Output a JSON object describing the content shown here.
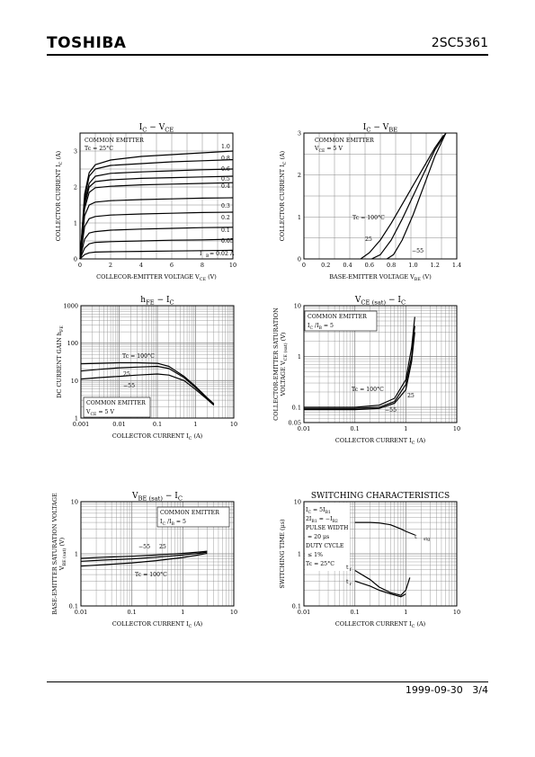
{
  "header": {
    "brand": "TOSHIBA",
    "part_number": "2SC5361"
  },
  "footer": {
    "date": "1999-09-30",
    "page": "3/4"
  },
  "chart_data": [
    {
      "id": "ic-vce",
      "type": "line",
      "title": [
        "I",
        "C",
        " − V",
        "CE"
      ],
      "xlabel": [
        "COLLECOR-EMITTER VOLTAGE   V",
        "CE",
        "   (V)"
      ],
      "ylabel": [
        "COLLECTOR CURRENT   I",
        "C",
        "   (A)"
      ],
      "xlim": [
        0,
        10
      ],
      "ylim": [
        0,
        3.5
      ],
      "xticks": [
        "0",
        "2",
        "4",
        "6",
        "8",
        "10"
      ],
      "yticks": [
        "0",
        "1",
        "2",
        "3"
      ],
      "grid": true,
      "annotations": [
        [
          "COMMON EMITTER"
        ],
        [
          "Tc = 25°C"
        ]
      ],
      "curve_labels": [
        "1.0",
        "0.8",
        "0.6",
        "0.5",
        "0.4",
        "0.3",
        "0.2",
        "0.1",
        "0.05",
        "I",
        "B",
        " = 0.02 A"
      ],
      "series": [
        {
          "ib": 1.0,
          "x": [
            0,
            0.3,
            0.6,
            1,
            2,
            4,
            6,
            8,
            10
          ],
          "y": [
            0,
            1.8,
            2.4,
            2.62,
            2.75,
            2.85,
            2.9,
            2.95,
            3.0
          ]
        },
        {
          "ib": 0.8,
          "x": [
            0,
            0.3,
            0.6,
            1,
            2,
            4,
            6,
            8,
            10
          ],
          "y": [
            0,
            1.7,
            2.3,
            2.5,
            2.6,
            2.65,
            2.7,
            2.73,
            2.76
          ]
        },
        {
          "ib": 0.6,
          "x": [
            0,
            0.3,
            0.6,
            1,
            2,
            4,
            6,
            8,
            10
          ],
          "y": [
            0,
            1.6,
            2.1,
            2.3,
            2.38,
            2.42,
            2.45,
            2.48,
            2.5
          ]
        },
        {
          "ib": 0.5,
          "x": [
            0,
            0.3,
            0.6,
            1,
            2,
            4,
            6,
            8,
            10
          ],
          "y": [
            0,
            1.5,
            2.0,
            2.15,
            2.2,
            2.24,
            2.26,
            2.28,
            2.3
          ]
        },
        {
          "ib": 0.4,
          "x": [
            0,
            0.3,
            0.6,
            1,
            2,
            4,
            6,
            8,
            10
          ],
          "y": [
            0,
            1.4,
            1.85,
            1.98,
            2.02,
            2.06,
            2.08,
            2.1,
            2.12
          ]
        },
        {
          "ib": 0.3,
          "x": [
            0,
            0.3,
            0.6,
            1,
            2,
            4,
            6,
            8,
            10
          ],
          "y": [
            0,
            1.2,
            1.5,
            1.58,
            1.62,
            1.65,
            1.67,
            1.69,
            1.7
          ]
        },
        {
          "ib": 0.2,
          "x": [
            0,
            0.3,
            0.6,
            1,
            2,
            4,
            6,
            8,
            10
          ],
          "y": [
            0,
            0.9,
            1.12,
            1.18,
            1.22,
            1.25,
            1.27,
            1.29,
            1.3
          ]
        },
        {
          "ib": 0.1,
          "x": [
            0,
            0.3,
            0.6,
            1,
            2,
            4,
            6,
            8,
            10
          ],
          "y": [
            0,
            0.55,
            0.72,
            0.76,
            0.8,
            0.83,
            0.85,
            0.87,
            0.88
          ]
        },
        {
          "ib": 0.05,
          "x": [
            0,
            0.3,
            0.6,
            1,
            2,
            4,
            6,
            8,
            10
          ],
          "y": [
            0,
            0.3,
            0.42,
            0.46,
            0.48,
            0.5,
            0.52,
            0.53,
            0.55
          ]
        },
        {
          "ib": 0.02,
          "x": [
            0,
            0.3,
            0.6,
            1,
            2,
            4,
            6,
            8,
            10
          ],
          "y": [
            0,
            0.12,
            0.17,
            0.19,
            0.2,
            0.21,
            0.22,
            0.23,
            0.24
          ]
        }
      ]
    },
    {
      "id": "ic-vbe",
      "type": "line",
      "title": [
        "I",
        "C",
        " − V",
        "BE"
      ],
      "xlabel": [
        "BASE-EMITTER VOLTAGE   V",
        "BE",
        "   (V)"
      ],
      "ylabel": [
        "COLLECTOR CURRENT   I",
        "C",
        "   (A)"
      ],
      "xlim": [
        0,
        1.4
      ],
      "ylim": [
        0,
        3
      ],
      "xticks": [
        "0",
        "0.2",
        "0.4",
        "0.6",
        "0.8",
        "1.0",
        "1.2",
        "1.4"
      ],
      "yticks": [
        "0",
        "1",
        "2",
        "3"
      ],
      "grid": true,
      "annotations": [
        [
          "COMMON EMITTER"
        ],
        [
          "V",
          "CE",
          " = 5 V"
        ]
      ],
      "curve_labels": [
        "Tc = 100°C",
        "25",
        "−55"
      ],
      "series": [
        {
          "name": "Tc = 100°C",
          "x": [
            0.52,
            0.6,
            0.7,
            0.8,
            0.9,
            1.0,
            1.1,
            1.2,
            1.28
          ],
          "y": [
            0,
            0.15,
            0.45,
            0.85,
            1.3,
            1.75,
            2.2,
            2.65,
            2.95
          ]
        },
        {
          "name": "25",
          "x": [
            0.62,
            0.7,
            0.8,
            0.9,
            1.0,
            1.1,
            1.2,
            1.3
          ],
          "y": [
            0,
            0.1,
            0.45,
            0.95,
            1.5,
            2.05,
            2.6,
            3.0
          ]
        },
        {
          "name": "−55",
          "x": [
            0.76,
            0.82,
            0.9,
            1.0,
            1.1,
            1.2,
            1.3
          ],
          "y": [
            0,
            0.1,
            0.45,
            1.05,
            1.75,
            2.45,
            3.0
          ]
        }
      ]
    },
    {
      "id": "hfe-ic",
      "type": "line",
      "title": [
        "h",
        "FE",
        " − I",
        "C"
      ],
      "xlabel": [
        "COLLECTOR CURRENT   I",
        "C",
        "   (A)"
      ],
      "ylabel": [
        "DC CURRENT GAIN   h",
        "FE"
      ],
      "xscale": "log",
      "yscale": "log",
      "xlim": [
        0.001,
        10
      ],
      "ylim": [
        1,
        1000
      ],
      "xticks": [
        "0.001",
        "0.01",
        "0.1",
        "1",
        "10"
      ],
      "yticks": [
        "1",
        "10",
        "100",
        "1000"
      ],
      "grid": true,
      "annotations": [
        [
          "COMMON EMITTER"
        ],
        [
          "V",
          "CE",
          " = 5 V"
        ]
      ],
      "curve_labels": [
        "Tc = 100°C",
        "25",
        "−55"
      ],
      "series": [
        {
          "name": "Tc = 100°C",
          "x": [
            0.001,
            0.003,
            0.01,
            0.03,
            0.1,
            0.2,
            0.5,
            1,
            2,
            3
          ],
          "y": [
            28,
            29,
            30,
            30,
            29,
            24,
            13,
            7,
            3.5,
            2.4
          ]
        },
        {
          "name": "25",
          "x": [
            0.001,
            0.003,
            0.01,
            0.03,
            0.1,
            0.2,
            0.5,
            1,
            2,
            3
          ],
          "y": [
            18,
            20,
            22,
            23,
            24,
            21,
            12,
            6.5,
            3.4,
            2.3
          ]
        },
        {
          "name": "−55",
          "x": [
            0.001,
            0.003,
            0.01,
            0.03,
            0.1,
            0.2,
            0.5,
            1,
            2,
            3
          ],
          "y": [
            11,
            12,
            13,
            14,
            15,
            14,
            10,
            5.8,
            3.2,
            2.2
          ]
        }
      ]
    },
    {
      "id": "vcesat-ic",
      "type": "line",
      "title": [
        "V",
        "CE (sat)",
        " − I",
        "C"
      ],
      "xlabel": [
        "COLLECTOR CURRENT   I",
        "C",
        "   (A)"
      ],
      "ylabel": [
        "COLLECTOR-EMITTER SATURATION",
        "VOLTAGE   V",
        "CE (sat)",
        "   (V)"
      ],
      "xscale": "log",
      "yscale": "log",
      "xlim": [
        0.01,
        10
      ],
      "ylim": [
        0.05,
        10
      ],
      "xticks": [
        "0.01",
        "0.1",
        "1",
        "10"
      ],
      "yticks": [
        "0.05",
        "0.1",
        "1",
        "10"
      ],
      "grid": true,
      "annotations": [
        [
          "COMMON EMITTER"
        ],
        [
          "I",
          "C",
          " /I",
          "B",
          " = 5"
        ]
      ],
      "curve_labels": [
        "Tc = 100°C",
        "25",
        "−55"
      ],
      "series": [
        {
          "name": "Tc = 100°C",
          "x": [
            0.01,
            0.03,
            0.1,
            0.3,
            0.6,
            1.0,
            1.3,
            1.5
          ],
          "y": [
            0.1,
            0.1,
            0.1,
            0.11,
            0.15,
            0.35,
            1.5,
            6.0
          ]
        },
        {
          "name": "25",
          "x": [
            0.01,
            0.03,
            0.1,
            0.3,
            0.6,
            1.0,
            1.3,
            1.5
          ],
          "y": [
            0.095,
            0.095,
            0.095,
            0.1,
            0.13,
            0.28,
            1.0,
            4.0
          ]
        },
        {
          "name": "−55",
          "x": [
            0.01,
            0.03,
            0.1,
            0.3,
            0.6,
            1.0,
            1.3,
            1.5
          ],
          "y": [
            0.09,
            0.09,
            0.09,
            0.095,
            0.12,
            0.22,
            0.8,
            3.0
          ]
        }
      ]
    },
    {
      "id": "vbesat-ic",
      "type": "line",
      "title": [
        "V",
        "BE (sat)",
        " − I",
        "C"
      ],
      "xlabel": [
        "COLLECTOR CURRENT   I",
        "C",
        "   (A)"
      ],
      "ylabel": [
        "BASE-EMITTER SATURATION VOLTAGE",
        "V",
        "BE (sat)",
        "   (V)"
      ],
      "xscale": "log",
      "yscale": "log",
      "xlim": [
        0.01,
        10
      ],
      "ylim": [
        0.1,
        10
      ],
      "xticks": [
        "0.01",
        "0.1",
        "1",
        "10"
      ],
      "yticks": [
        "0.1",
        "1",
        "10"
      ],
      "grid": true,
      "annotations": [
        [
          "COMMON EMITTER"
        ],
        [
          "I",
          "C",
          " /I",
          "B",
          " = 5"
        ]
      ],
      "curve_labels": [
        "−55",
        "25",
        "Tc = 100°C"
      ],
      "series": [
        {
          "name": "−55",
          "x": [
            0.01,
            0.03,
            0.1,
            0.3,
            1,
            2,
            3
          ],
          "y": [
            0.82,
            0.86,
            0.9,
            0.95,
            1.02,
            1.08,
            1.12
          ]
        },
        {
          "name": "25",
          "x": [
            0.01,
            0.03,
            0.1,
            0.3,
            1,
            2,
            3
          ],
          "y": [
            0.72,
            0.76,
            0.8,
            0.86,
            0.95,
            1.02,
            1.08
          ]
        },
        {
          "name": "Tc = 100°C",
          "x": [
            0.01,
            0.03,
            0.1,
            0.3,
            1,
            2,
            3
          ],
          "y": [
            0.58,
            0.62,
            0.67,
            0.74,
            0.85,
            0.95,
            1.02
          ]
        }
      ]
    },
    {
      "id": "switching",
      "type": "line",
      "title": [
        "SWITCHING  CHARACTERISTICS"
      ],
      "xlabel": [
        "COLLECTOR CURRENT   I",
        "C",
        "   (A)"
      ],
      "ylabel": [
        "SWITCHING TIME   (μs)"
      ],
      "xscale": "log",
      "yscale": "log",
      "xlim": [
        0.01,
        10
      ],
      "ylim": [
        0.1,
        10
      ],
      "xticks": [
        "0.01",
        "0.1",
        "1",
        "10"
      ],
      "yticks": [
        "0.1",
        "1",
        "10"
      ],
      "grid": true,
      "annotations": [
        [
          "I",
          "C",
          " = 5I",
          "B1"
        ],
        [
          "2I",
          "B1",
          " = −I",
          "B2"
        ],
        [
          "PULSE WIDTH"
        ],
        [
          "= 20 μs"
        ],
        [
          "DUTY CYCLE"
        ],
        [
          "≤ 1%"
        ],
        [
          "Tc = 25°C"
        ]
      ],
      "curve_labels": [
        "t",
        "stg",
        "t",
        "f",
        "t",
        "r"
      ],
      "series": [
        {
          "name": "tstg",
          "x": [
            0.1,
            0.2,
            0.3,
            0.5,
            0.8,
            1.0,
            1.5
          ],
          "y": [
            4.0,
            4.0,
            3.9,
            3.6,
            3.0,
            2.7,
            2.3
          ]
        },
        {
          "name": "tf",
          "x": [
            0.1,
            0.2,
            0.3,
            0.5,
            0.8,
            1.0,
            1.2
          ],
          "y": [
            0.48,
            0.32,
            0.23,
            0.18,
            0.16,
            0.2,
            0.35
          ]
        },
        {
          "name": "tr",
          "x": [
            0.1,
            0.2,
            0.3,
            0.5,
            0.8,
            1.0
          ],
          "y": [
            0.3,
            0.24,
            0.2,
            0.17,
            0.15,
            0.17
          ]
        }
      ]
    }
  ]
}
